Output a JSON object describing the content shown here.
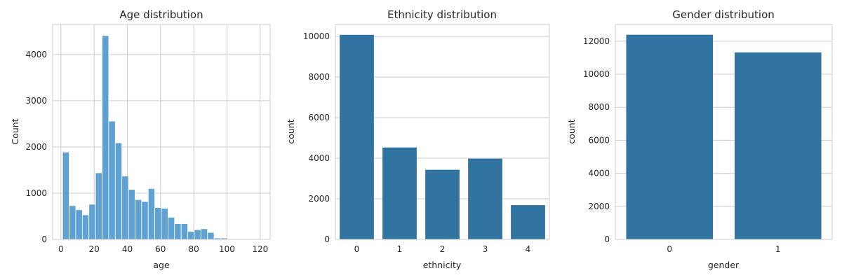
{
  "chart_data": [
    {
      "type": "bar",
      "subtype": "histogram",
      "title": "Age distribution",
      "xlabel": "age",
      "ylabel": "Count",
      "xlim": [
        -5,
        126
      ],
      "ylim": [
        0,
        4650
      ],
      "xticks": [
        0,
        20,
        40,
        60,
        80,
        100,
        120
      ],
      "yticks": [
        0,
        1000,
        2000,
        3000,
        4000
      ],
      "grid": true,
      "color": "#5a9ecf",
      "bins": [
        {
          "x0": 1,
          "x1": 4.97,
          "value": 1890
        },
        {
          "x0": 4.97,
          "x1": 8.93,
          "value": 730
        },
        {
          "x0": 8.93,
          "x1": 12.9,
          "value": 640
        },
        {
          "x0": 12.9,
          "x1": 16.87,
          "value": 530
        },
        {
          "x0": 16.87,
          "x1": 20.83,
          "value": 760
        },
        {
          "x0": 20.83,
          "x1": 24.8,
          "value": 1440
        },
        {
          "x0": 24.8,
          "x1": 28.77,
          "value": 4410
        },
        {
          "x0": 28.77,
          "x1": 32.73,
          "value": 2560
        },
        {
          "x0": 32.73,
          "x1": 36.7,
          "value": 2090
        },
        {
          "x0": 36.7,
          "x1": 40.67,
          "value": 1370
        },
        {
          "x0": 40.67,
          "x1": 44.63,
          "value": 1080
        },
        {
          "x0": 44.63,
          "x1": 48.6,
          "value": 860
        },
        {
          "x0": 48.6,
          "x1": 52.57,
          "value": 820
        },
        {
          "x0": 52.57,
          "x1": 56.53,
          "value": 1100
        },
        {
          "x0": 56.53,
          "x1": 60.5,
          "value": 690
        },
        {
          "x0": 60.5,
          "x1": 64.47,
          "value": 670
        },
        {
          "x0": 64.47,
          "x1": 68.43,
          "value": 480
        },
        {
          "x0": 68.43,
          "x1": 72.4,
          "value": 340
        },
        {
          "x0": 72.4,
          "x1": 76.37,
          "value": 340
        },
        {
          "x0": 76.37,
          "x1": 80.33,
          "value": 170
        },
        {
          "x0": 80.33,
          "x1": 84.3,
          "value": 210
        },
        {
          "x0": 84.3,
          "x1": 88.27,
          "value": 230
        },
        {
          "x0": 88.27,
          "x1": 92.23,
          "value": 150
        },
        {
          "x0": 92.23,
          "x1": 96.2,
          "value": 30
        },
        {
          "x0": 96.2,
          "x1": 100.17,
          "value": 30
        },
        {
          "x0": 100.17,
          "x1": 104.13,
          "value": 10
        },
        {
          "x0": 104.13,
          "x1": 108.1,
          "value": 5
        },
        {
          "x0": 108.1,
          "x1": 112.07,
          "value": 5
        },
        {
          "x0": 112.07,
          "x1": 116.03,
          "value": 5
        },
        {
          "x0": 116.03,
          "x1": 120,
          "value": 5
        }
      ]
    },
    {
      "type": "bar",
      "title": "Ethnicity distribution",
      "xlabel": "ethnicity",
      "ylabel": "count",
      "categories": [
        "0",
        "1",
        "2",
        "3",
        "4"
      ],
      "values": [
        10080,
        4530,
        3430,
        3980,
        1690
      ],
      "ylim": [
        0,
        10590
      ],
      "yticks": [
        0,
        2000,
        4000,
        6000,
        8000,
        10000
      ],
      "grid": true,
      "color": "#3274a1"
    },
    {
      "type": "bar",
      "title": "Gender distribution",
      "xlabel": "gender",
      "ylabel": "count",
      "categories": [
        "0",
        "1"
      ],
      "values": [
        12390,
        11320
      ],
      "ylim": [
        0,
        13010
      ],
      "yticks": [
        0,
        2000,
        4000,
        6000,
        8000,
        10000,
        12000
      ],
      "grid": true,
      "color": "#3274a1"
    }
  ]
}
